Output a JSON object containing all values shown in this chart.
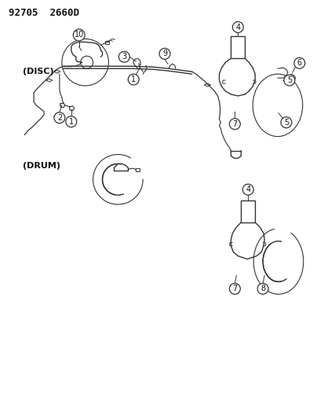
{
  "title": "92705  2660D",
  "background_color": "#ffffff",
  "line_color": "#333333",
  "text_color": "#111111",
  "fig_width": 4.14,
  "fig_height": 5.33,
  "dpi": 100,
  "labels": {
    "disc": "(DISC)",
    "drum": "(DRUM)"
  }
}
